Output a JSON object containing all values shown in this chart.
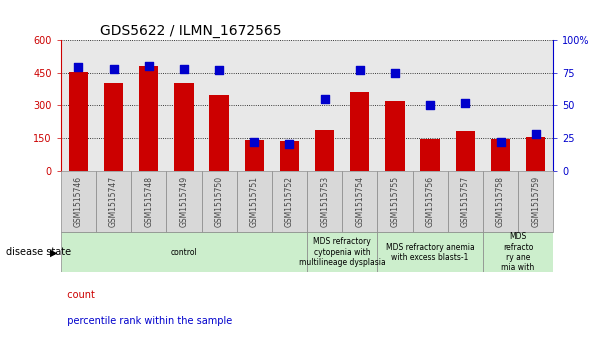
{
  "title": "GDS5622 / ILMN_1672565",
  "samples": [
    "GSM1515746",
    "GSM1515747",
    "GSM1515748",
    "GSM1515749",
    "GSM1515750",
    "GSM1515751",
    "GSM1515752",
    "GSM1515753",
    "GSM1515754",
    "GSM1515755",
    "GSM1515756",
    "GSM1515757",
    "GSM1515758",
    "GSM1515759"
  ],
  "counts": [
    455,
    400,
    480,
    400,
    345,
    140,
    135,
    185,
    360,
    320,
    145,
    180,
    145,
    155
  ],
  "percentile_ranks": [
    79,
    78,
    80,
    78,
    77,
    22,
    20,
    55,
    77,
    75,
    50,
    52,
    22,
    28
  ],
  "disease_states": [
    {
      "label": "control",
      "start": 0,
      "end": 7,
      "color": "#cceecc"
    },
    {
      "label": "MDS refractory\ncytopenia with\nmultilineage dysplasia",
      "start": 7,
      "end": 9,
      "color": "#cceecc"
    },
    {
      "label": "MDS refractory anemia\nwith excess blasts-1",
      "start": 9,
      "end": 12,
      "color": "#cceecc"
    },
    {
      "label": "MDS\nrefracto\nry ane\nmia with",
      "start": 12,
      "end": 14,
      "color": "#cceecc"
    }
  ],
  "ylim_left": [
    0,
    600
  ],
  "ylim_right": [
    0,
    100
  ],
  "yticks_left": [
    0,
    150,
    300,
    450,
    600
  ],
  "yticks_right": [
    0,
    25,
    50,
    75,
    100
  ],
  "bar_color": "#cc0000",
  "dot_color": "#0000cc",
  "bar_width": 0.55,
  "dot_size": 35,
  "grid_color": "#000000",
  "tick_label_color": "#444444",
  "ylabel_left_color": "#cc0000",
  "ylabel_right_color": "#0000cc",
  "background_color": "#ffffff",
  "plot_bg_color": "#e8e8e8",
  "tick_box_color": "#d8d8d8"
}
